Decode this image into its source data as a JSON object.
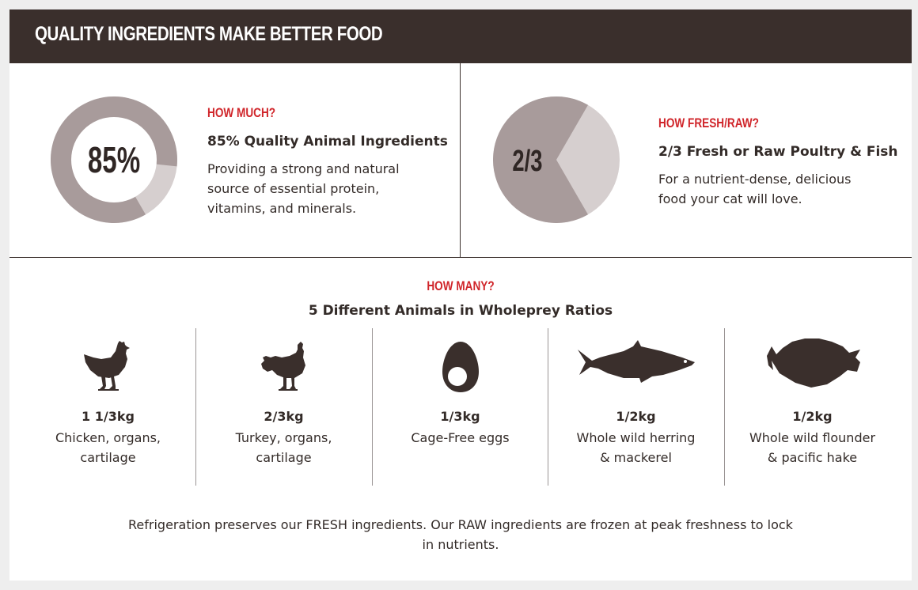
{
  "title": "QUALITY INGREDIENTS MAKE BETTER FOOD",
  "colors": {
    "banner": "#3a2f2c",
    "accent": "#d0262b",
    "chart_dark": "#a89b9b",
    "chart_light": "#d6cfcf"
  },
  "section_how_much": {
    "kicker": "HOW MUCH?",
    "headline": "85% Quality Animal Ingredients",
    "description": "Providing a strong and natural source of essential protein, vitamins, and minerals.",
    "chart_label": "85%",
    "fraction": 0.85
  },
  "section_fresh_raw": {
    "kicker": "HOW FRESH/RAW?",
    "headline": "2/3 Fresh or Raw Poultry & Fish",
    "description": "For a nutrient-dense, delicious food your cat will love.",
    "chart_label": "2/3",
    "fraction": 0.6667
  },
  "section_how_many": {
    "kicker": "HOW MANY?",
    "headline": "5 Different Animals in Wholeprey Ratios",
    "animals": [
      {
        "icon": "chicken-icon",
        "quantity": "1 1/3kg",
        "description": "Chicken, organs, cartilage"
      },
      {
        "icon": "turkey-icon",
        "quantity": "2/3kg",
        "description": "Turkey, organs, cartilage"
      },
      {
        "icon": "egg-icon",
        "quantity": "1/3kg",
        "description": "Cage-Free eggs"
      },
      {
        "icon": "fish-icon",
        "quantity": "1/2kg",
        "description": "Whole wild herring & mackerel"
      },
      {
        "icon": "flounder-icon",
        "quantity": "1/2kg",
        "description": "Whole wild flounder & pacific hake"
      }
    ]
  },
  "footer": "Refrigeration preserves our FRESH ingredients. Our RAW ingredients are frozen at peak freshness to lock in nutrients."
}
